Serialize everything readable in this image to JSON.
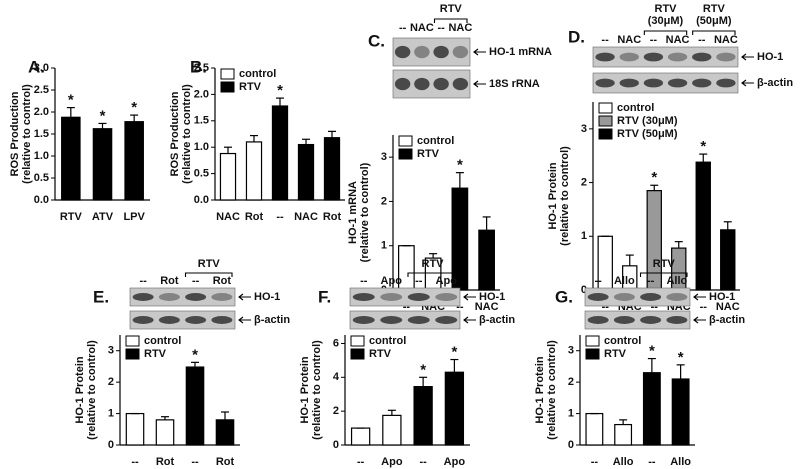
{
  "chart_data": [
    {
      "type": "bar",
      "panel": "A.",
      "ylabel": [
        "ROS Production",
        "(relative to control)"
      ],
      "categories": [
        "RTV",
        "ATV",
        "LPV"
      ],
      "series": [
        {
          "color": "#000000",
          "values": [
            1.88,
            1.62,
            1.78
          ],
          "errors": [
            0.22,
            0.12,
            0.15
          ]
        }
      ],
      "ylim": [
        0,
        3
      ],
      "yticks": [
        {
          "value": 0,
          "label": "0.0"
        },
        {
          "value": 0.5,
          "label": "0.5"
        },
        {
          "value": 1,
          "label": "1.0"
        },
        {
          "value": 1.5,
          "label": "1.5"
        },
        {
          "value": 2,
          "label": "2.0"
        },
        {
          "value": 2.5,
          "label": "2.5"
        },
        {
          "value": 3,
          "label": "3.0"
        }
      ],
      "annotations": [
        {
          "text": "*",
          "index": 0
        },
        {
          "text": "*",
          "index": 1
        },
        {
          "text": "*",
          "index": 2
        }
      ]
    },
    {
      "type": "bar",
      "panel": "B.",
      "ylabel": [
        "ROS Production",
        "(relative to control)"
      ],
      "categories": [
        "NAC",
        "Rot",
        "--",
        "NAC",
        "Rot"
      ],
      "series": [
        {
          "name": "control",
          "color": "#ffffff",
          "values": [
            0.88,
            1.1,
            null,
            null,
            null
          ],
          "errors": [
            0.12,
            0.12,
            null,
            null,
            null
          ]
        },
        {
          "name": "RTV",
          "color": "#000000",
          "values": [
            null,
            null,
            1.78,
            1.05,
            1.18
          ],
          "errors": [
            null,
            null,
            0.15,
            0.1,
            0.12
          ]
        }
      ],
      "ylim": [
        0,
        2.5
      ],
      "yticks": [
        {
          "value": 0,
          "label": "0.0"
        },
        {
          "value": 0.5,
          "label": "0.5"
        },
        {
          "value": 1,
          "label": "1.0"
        },
        {
          "value": 1.5,
          "label": "1.5"
        },
        {
          "value": 2,
          "label": "2.0"
        },
        {
          "value": 2.5,
          "label": "2.5"
        }
      ],
      "annotations": [
        {
          "text": "*",
          "index": 2
        }
      ]
    },
    {
      "type": "bar",
      "panel": "C.",
      "ylabel": [
        "HO-1 mRNA",
        "(relative to control)"
      ],
      "categories": [
        "--",
        "NAC",
        "--",
        "NAC"
      ],
      "series": [
        {
          "name": "control",
          "color": "#ffffff",
          "values": [
            1.0,
            0.72,
            null,
            null
          ],
          "errors": [
            0,
            0.1,
            null,
            null
          ]
        },
        {
          "name": "RTV",
          "color": "#000000",
          "values": [
            null,
            null,
            2.3,
            1.35
          ],
          "errors": [
            null,
            null,
            0.35,
            0.3
          ]
        }
      ],
      "ylim": [
        0,
        3.5
      ],
      "yticks": [
        0,
        1,
        2,
        3
      ],
      "annotations": [
        {
          "text": "*",
          "index": 2
        }
      ],
      "blot_labels": [
        "HO-1 mRNA",
        "18S rRNA"
      ],
      "groups": [
        {
          "label": [
            "RTV"
          ],
          "from": 2,
          "to": 3
        }
      ]
    },
    {
      "type": "bar",
      "panel": "D.",
      "ylabel": [
        "HO-1 Protein",
        "(relative to control)"
      ],
      "categories": [
        "--",
        "NAC",
        "--",
        "NAC",
        "--",
        "NAC"
      ],
      "series": [
        {
          "name": "control",
          "color": "#ffffff",
          "values": [
            1.0,
            0.45,
            null,
            null,
            null,
            null
          ],
          "errors": [
            0,
            0.2,
            null,
            null,
            null,
            null
          ]
        },
        {
          "name": "RTV (30μM)",
          "color": "#999999",
          "values": [
            null,
            null,
            1.85,
            0.78,
            null,
            null
          ],
          "errors": [
            null,
            null,
            0.1,
            0.12,
            null,
            null
          ]
        },
        {
          "name": "RTV (50μM)",
          "color": "#000000",
          "values": [
            null,
            null,
            null,
            null,
            2.38,
            1.12
          ],
          "errors": [
            null,
            null,
            null,
            null,
            0.15,
            0.15
          ]
        }
      ],
      "ylim": [
        0,
        3.5
      ],
      "yticks": [
        0,
        1,
        2,
        3
      ],
      "annotations": [
        {
          "text": "*",
          "index": 2
        },
        {
          "text": "*",
          "index": 4
        }
      ],
      "blot_labels": [
        "HO-1",
        "β-actin"
      ],
      "groups": [
        {
          "label": [
            "RTV",
            "(30μM)"
          ],
          "from": 2,
          "to": 3
        },
        {
          "label": [
            "RTV",
            "(50μM)"
          ],
          "from": 4,
          "to": 5
        }
      ]
    },
    {
      "type": "bar",
      "panel": "E.",
      "ylabel": [
        "HO-1 Protein",
        "(relative to control)"
      ],
      "categories": [
        "--",
        "Rot",
        "--",
        "Rot"
      ],
      "series": [
        {
          "name": "control",
          "color": "#ffffff",
          "values": [
            1.0,
            0.8,
            null,
            null
          ],
          "errors": [
            0,
            0.1,
            null,
            null
          ]
        },
        {
          "name": "RTV",
          "color": "#000000",
          "values": [
            null,
            null,
            2.48,
            0.8
          ],
          "errors": [
            null,
            null,
            0.15,
            0.25
          ]
        }
      ],
      "ylim": [
        0,
        3.5
      ],
      "yticks": [
        0,
        1,
        2,
        3
      ],
      "annotations": [
        {
          "text": "*",
          "index": 2
        }
      ],
      "blot_labels": [
        "HO-1",
        "β-actin"
      ],
      "groups": [
        {
          "label": [
            "RTV"
          ],
          "from": 2,
          "to": 3
        }
      ]
    },
    {
      "type": "bar",
      "panel": "F.",
      "ylabel": [
        "HO-1 Protein",
        "(relative to control)"
      ],
      "categories": [
        "--",
        "Apo",
        "--",
        "Apo"
      ],
      "series": [
        {
          "name": "control",
          "color": "#ffffff",
          "values": [
            1.0,
            1.75,
            null,
            null
          ],
          "errors": [
            0,
            0.3,
            null,
            null
          ]
        },
        {
          "name": "RTV",
          "color": "#000000",
          "values": [
            null,
            null,
            3.45,
            4.3
          ],
          "errors": [
            null,
            null,
            0.55,
            0.75
          ]
        }
      ],
      "ylim": [
        0,
        6.5
      ],
      "yticks": [
        0,
        2,
        4,
        6
      ],
      "annotations": [
        {
          "text": "*",
          "index": 2
        },
        {
          "text": "*",
          "index": 3
        }
      ],
      "blot_labels": [
        "HO-1",
        "β-actin"
      ],
      "groups": [
        {
          "label": [
            "RTV"
          ],
          "from": 2,
          "to": 3
        }
      ]
    },
    {
      "type": "bar",
      "panel": "G.",
      "ylabel": [
        "HO-1 Protein",
        "(relative to control)"
      ],
      "categories": [
        "--",
        "Allo",
        "--",
        "Allo"
      ],
      "series": [
        {
          "name": "control",
          "color": "#ffffff",
          "values": [
            1.0,
            0.65,
            null,
            null
          ],
          "errors": [
            0,
            0.15,
            null,
            null
          ]
        },
        {
          "name": "RTV",
          "color": "#000000",
          "values": [
            null,
            null,
            2.3,
            2.1
          ],
          "errors": [
            null,
            null,
            0.45,
            0.45
          ]
        }
      ],
      "ylim": [
        0,
        3.5
      ],
      "yticks": [
        0,
        1,
        2,
        3
      ],
      "annotations": [
        {
          "text": "*",
          "index": 2
        },
        {
          "text": "*",
          "index": 3
        }
      ],
      "blot_labels": [
        "HO-1",
        "β-actin"
      ],
      "groups": [
        {
          "label": [
            "RTV"
          ],
          "from": 2,
          "to": 3
        }
      ]
    }
  ]
}
